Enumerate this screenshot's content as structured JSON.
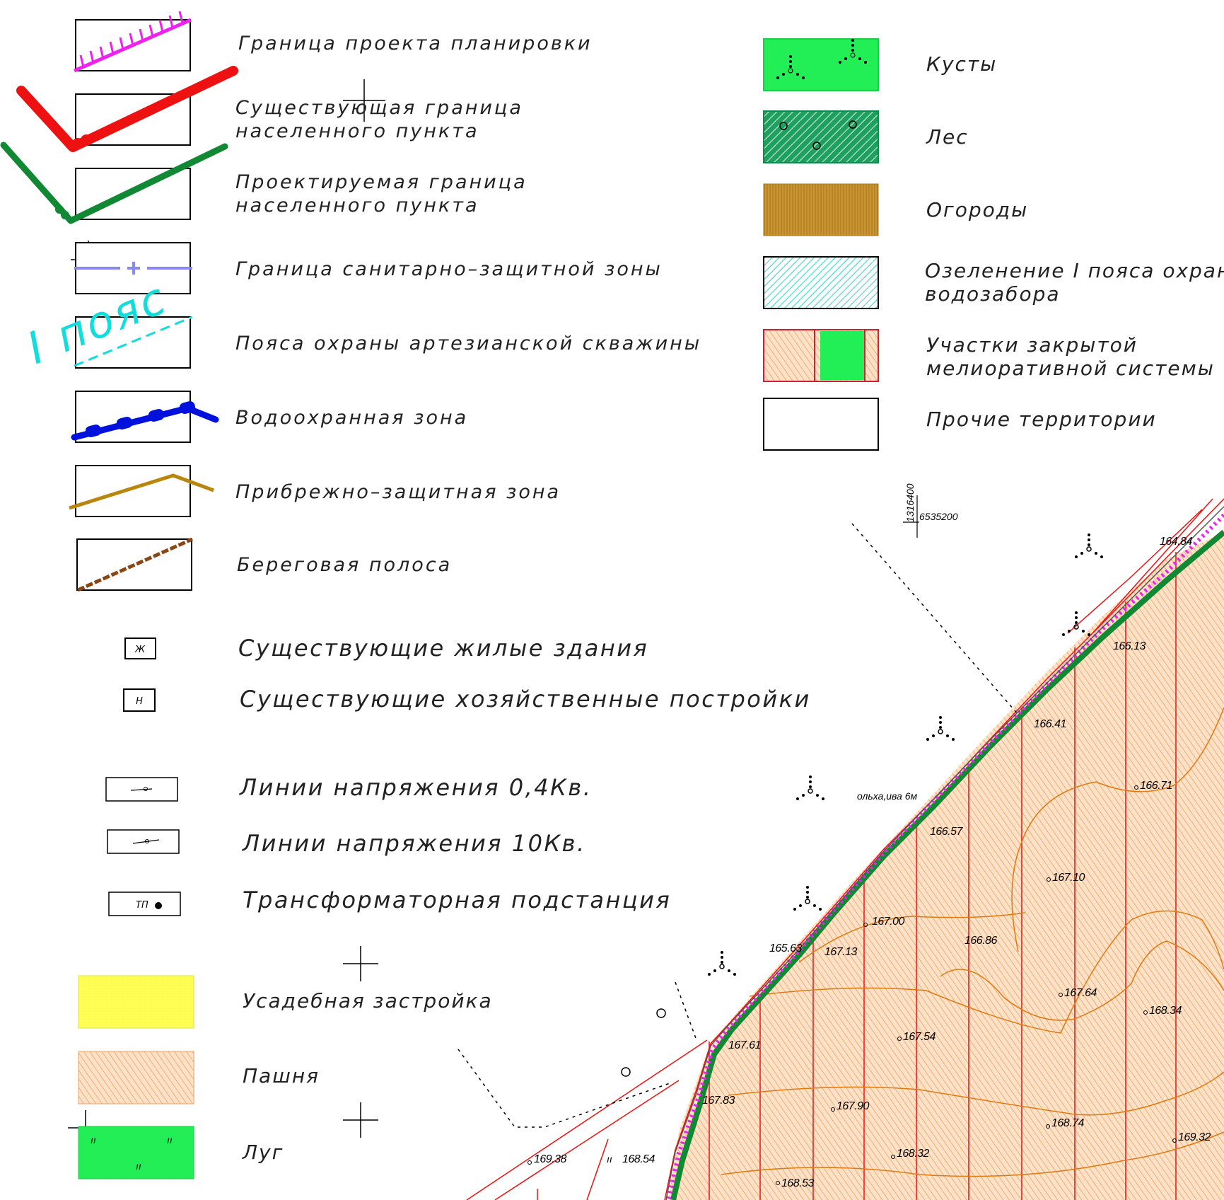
{
  "legend_left": {
    "items": [
      {
        "id": "planning-boundary",
        "label_lines": [
          "Граница проекта планировки"
        ]
      },
      {
        "id": "existing-settlement-boundary",
        "label_lines": [
          "Существующая граница",
          "населенного пункта"
        ]
      },
      {
        "id": "projected-settlement-boundary",
        "label_lines": [
          "Проектируемая граница",
          "населенного пункта"
        ]
      },
      {
        "id": "sanitary-zone-boundary",
        "label_lines": [
          "Граница санитарно–защитной зоны"
        ]
      },
      {
        "id": "well-protection-belts",
        "label_lines": [
          "Пояса охраны артезианской скважины"
        ]
      },
      {
        "id": "water-protection-zone",
        "label_lines": [
          "Водоохранная зона"
        ]
      },
      {
        "id": "coastal-protection-zone",
        "label_lines": [
          "Прибрежно–защитная зона"
        ]
      },
      {
        "id": "shore-strip",
        "label_lines": [
          "Береговая полоса"
        ]
      }
    ],
    "belt_tag": "I пояс",
    "building_items": [
      {
        "id": "residential-buildings",
        "symbol": "Ж",
        "label": "Существующие жилые здания"
      },
      {
        "id": "outbuildings",
        "symbol": "Н",
        "label": "Существующие хозяйственные постройки"
      }
    ],
    "power_items": [
      {
        "id": "power-line-04",
        "label": "Линии напряжения 0,4Кв."
      },
      {
        "id": "power-line-10",
        "label": "Линии напряжения 10Кв."
      },
      {
        "id": "transformer",
        "symbol": "ТП",
        "label": "Трансформаторная подстанция"
      }
    ],
    "land_items": [
      {
        "id": "homestead",
        "label": "Усадебная застройка",
        "color": "#ffff55"
      },
      {
        "id": "arable",
        "label": "Пашня",
        "color": "#fcc89a"
      },
      {
        "id": "meadow",
        "label": "Луг",
        "color": "#22ee55",
        "symbol": "ıı"
      }
    ]
  },
  "legend_right": {
    "items": [
      {
        "id": "shrubs",
        "label_lines": [
          "Кусты"
        ],
        "color": "#22ee55"
      },
      {
        "id": "forest",
        "label_lines": [
          "Лес"
        ],
        "color": "#1fa060"
      },
      {
        "id": "gardens",
        "label_lines": [
          "Огороды"
        ],
        "color": "#c0902a"
      },
      {
        "id": "greening-zone1",
        "label_lines": [
          "Озеленение I пояса охраны",
          "водозабора"
        ],
        "color": "#33e0cc"
      },
      {
        "id": "drainage-plots",
        "label_lines": [
          "Участки закрытой",
          "мелиоративной системы"
        ],
        "color": "#fcc89a"
      },
      {
        "id": "other-territories",
        "label_lines": [
          "Прочие территории"
        ],
        "color": "#ffffff"
      }
    ]
  },
  "map": {
    "grid_label_x": "1316400",
    "grid_label_y": "6535200",
    "vegetation_note": "ольха,ива 6м",
    "elevations": [
      "164.84",
      "166.13",
      "166.41",
      "166.71",
      "166.57",
      "167.10",
      "167.00",
      "165.63",
      "167.13",
      "166.86",
      "167.64",
      "168.34",
      "167.61",
      "167.54",
      "167.83",
      "167.90",
      "168.74",
      "169.32",
      "169.38",
      "168.54",
      "168.32",
      "168.53"
    ],
    "colors": {
      "planning_boundary": "#ee22ee",
      "existing_boundary": "#ee1111",
      "projected_boundary": "#118833",
      "sanitary_zone": "#8888ee",
      "belt": "#11dddd",
      "water_zone": "#0011dd",
      "coastal_zone": "#b8860b",
      "shore_strip": "#8b4513",
      "contours": "#e07a10"
    }
  }
}
